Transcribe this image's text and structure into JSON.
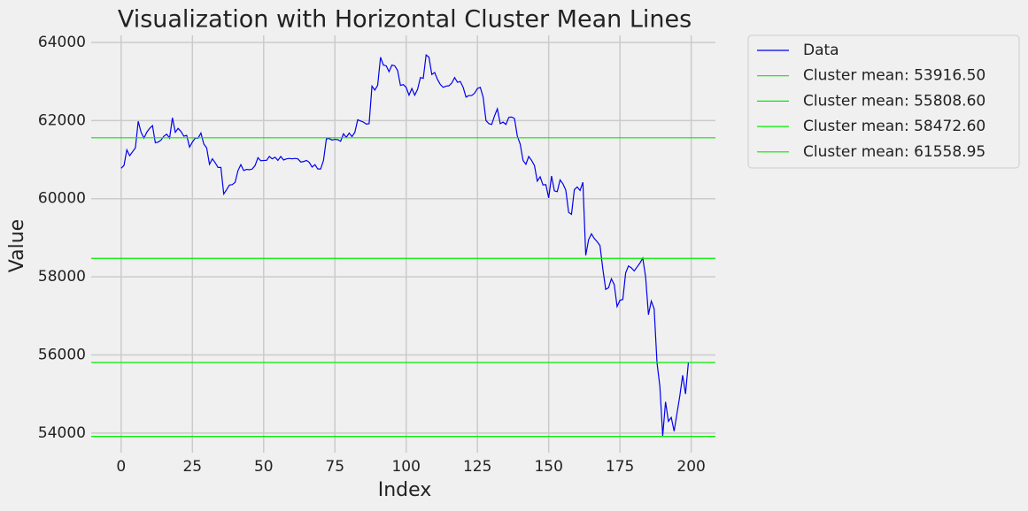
{
  "chart_data": {
    "type": "line",
    "title": "Visualization with Horizontal Cluster Mean Lines",
    "xlabel": "Index",
    "ylabel": "Value",
    "x": [
      0,
      1,
      2,
      3,
      4,
      5,
      6,
      7,
      8,
      9,
      10,
      11,
      12,
      13,
      14,
      15,
      16,
      17,
      18,
      19,
      20,
      21,
      22,
      23,
      24,
      25,
      26,
      27,
      28,
      29,
      30,
      31,
      32,
      33,
      34,
      35,
      36,
      37,
      38,
      39,
      40,
      41,
      42,
      43,
      44,
      45,
      46,
      47,
      48,
      49,
      50,
      51,
      52,
      53,
      54,
      55,
      56,
      57,
      58,
      59,
      60,
      61,
      62,
      63,
      64,
      65,
      66,
      67,
      68,
      69,
      70,
      71,
      72,
      73,
      74,
      75,
      76,
      77,
      78,
      79,
      80,
      81,
      82,
      83,
      84,
      85,
      86,
      87,
      88,
      89,
      90,
      91,
      92,
      93,
      94,
      95,
      96,
      97,
      98,
      99,
      100,
      101,
      102,
      103,
      104,
      105,
      106,
      107,
      108,
      109,
      110,
      111,
      112,
      113,
      114,
      115,
      116,
      117,
      118,
      119,
      120,
      121,
      122,
      123,
      124,
      125,
      126,
      127,
      128,
      129,
      130,
      131,
      132,
      133,
      134,
      135,
      136,
      137,
      138,
      139,
      140,
      141,
      142,
      143,
      144,
      145,
      146,
      147,
      148,
      149,
      150,
      151,
      152,
      153,
      154,
      155,
      156,
      157,
      158,
      159,
      160,
      161,
      162,
      163,
      164,
      165,
      166,
      167,
      168,
      169,
      170,
      171,
      172,
      173,
      174,
      175,
      176,
      177,
      178,
      179,
      180,
      181,
      182,
      183,
      184,
      185,
      186,
      187,
      188,
      189,
      190,
      191,
      192,
      193,
      194,
      195,
      196,
      197,
      198,
      199
    ],
    "series": [
      {
        "name": "Data",
        "color": "#0000ee",
        "values": [
          60780,
          60850,
          61250,
          61100,
          61200,
          61300,
          61980,
          61700,
          61550,
          61700,
          61800,
          61870,
          61430,
          61450,
          61500,
          61600,
          61650,
          61550,
          62070,
          61700,
          61800,
          61720,
          61600,
          61620,
          61320,
          61450,
          61550,
          61550,
          61680,
          61400,
          61300,
          60880,
          61020,
          60920,
          60800,
          60800,
          60120,
          60230,
          60350,
          60360,
          60420,
          60720,
          60870,
          60720,
          60750,
          60740,
          60760,
          60850,
          61050,
          60970,
          60980,
          60980,
          61080,
          61020,
          61060,
          60980,
          61080,
          60990,
          61020,
          61030,
          61020,
          61030,
          61020,
          60940,
          60950,
          60980,
          60930,
          60810,
          60870,
          60760,
          60760,
          60980,
          61530,
          61540,
          61500,
          61520,
          61510,
          61470,
          61660,
          61570,
          61680,
          61590,
          61700,
          62020,
          61990,
          61960,
          61910,
          61920,
          62880,
          62780,
          62900,
          63620,
          63420,
          63400,
          63250,
          63420,
          63400,
          63280,
          62900,
          62920,
          62850,
          62650,
          62820,
          62650,
          62800,
          63100,
          63080,
          63680,
          63620,
          63180,
          63230,
          63050,
          62920,
          62850,
          62880,
          62890,
          62960,
          63100,
          62980,
          63000,
          62850,
          62600,
          62640,
          62640,
          62700,
          62820,
          62850,
          62600,
          62000,
          61920,
          61900,
          62120,
          62300,
          61920,
          61960,
          61900,
          62080,
          62090,
          62050,
          61600,
          61400,
          60980,
          60880,
          61080,
          60980,
          60850,
          60450,
          60560,
          60350,
          60360,
          60020,
          60580,
          60200,
          60180,
          60480,
          60380,
          60220,
          59650,
          59600,
          60230,
          60300,
          60210,
          60420,
          58550,
          58950,
          59100,
          58980,
          58900,
          58800,
          58200,
          57680,
          57720,
          57950,
          57800,
          57240,
          57400,
          57420,
          58100,
          58280,
          58230,
          58150,
          58250,
          58350,
          58480,
          58000,
          57030,
          57380,
          57180,
          55800,
          55200,
          53930,
          54800,
          54300,
          54400,
          54050,
          54500,
          54950,
          55480,
          55000,
          55800
        ]
      }
    ],
    "hlines": [
      {
        "label": "Cluster mean: 53916.50",
        "value": 53916.5,
        "color": "#00ee00"
      },
      {
        "label": "Cluster mean: 55808.60",
        "value": 55808.6,
        "color": "#00ee00"
      },
      {
        "label": "Cluster mean: 58472.60",
        "value": 58472.6,
        "color": "#00ee00"
      },
      {
        "label": "Cluster mean: 61558.95",
        "value": 61558.95,
        "color": "#00ee00"
      }
    ],
    "xlim": [
      -10.5,
      208.5
    ],
    "ylim": [
      53500,
      64180
    ],
    "xticks": [
      0,
      25,
      50,
      75,
      100,
      125,
      150,
      175,
      200
    ],
    "yticks": [
      54000,
      56000,
      58000,
      60000,
      62000,
      64000
    ],
    "grid": true,
    "legend": "outside upper right"
  }
}
